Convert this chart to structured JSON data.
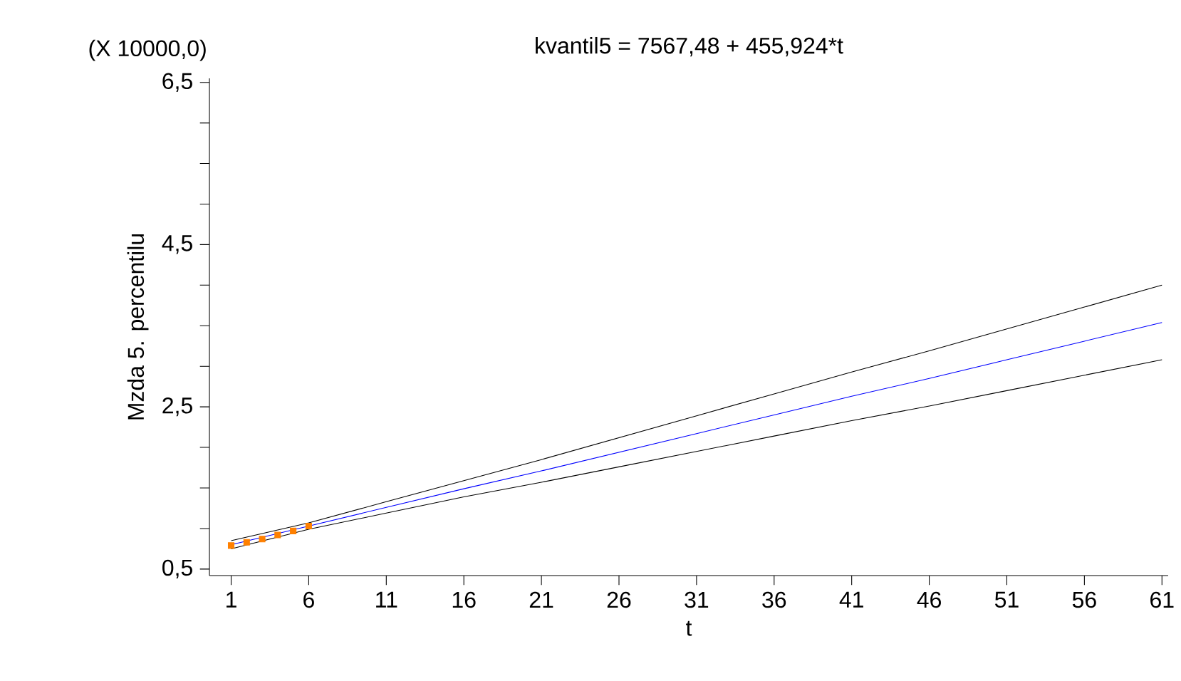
{
  "chart_data": {
    "type": "line",
    "title": "kvantil5 = 7567,48 + 455,924*t",
    "xlabel": "t",
    "ylabel": "Mzda 5. percentilu",
    "annotations": [
      "(X 10000,0)"
    ],
    "xlim": [
      -0.4,
      61.4
    ],
    "ylim": [
      0.42,
      6.55
    ],
    "xticks": [
      1,
      6,
      11,
      16,
      21,
      26,
      31,
      36,
      41,
      46,
      51,
      56,
      61
    ],
    "yticks": [
      {
        "value": 0.5,
        "label": "0,5"
      },
      {
        "value": 1.0,
        "label": null
      },
      {
        "value": 1.5,
        "label": null
      },
      {
        "value": 2.0,
        "label": null
      },
      {
        "value": 2.5,
        "label": "2,5"
      },
      {
        "value": 3.0,
        "label": null
      },
      {
        "value": 3.5,
        "label": null
      },
      {
        "value": 4.0,
        "label": null
      },
      {
        "value": 4.5,
        "label": "4,5"
      },
      {
        "value": 5.0,
        "label": null
      },
      {
        "value": 5.5,
        "label": null
      },
      {
        "value": 6.0,
        "label": null
      },
      {
        "value": 6.5,
        "label": "6,5"
      }
    ],
    "grid": false,
    "x": [
      1,
      6,
      11,
      16,
      21,
      26,
      31,
      36,
      41,
      46,
      51,
      56,
      61
    ],
    "series": [
      {
        "color": "#000000",
        "marker": "none",
        "values": [
          0.85,
          1.07,
          1.33,
          1.59,
          1.85,
          2.12,
          2.39,
          2.66,
          2.93,
          3.19,
          3.46,
          3.73,
          4.0
        ]
      },
      {
        "color": "#000000",
        "marker": "none",
        "values": [
          0.75,
          0.99,
          1.19,
          1.39,
          1.57,
          1.76,
          1.95,
          2.14,
          2.33,
          2.51,
          2.7,
          2.89,
          3.08
        ]
      },
      {
        "color": "#0000ff",
        "marker": "none",
        "values": [
          0.8,
          1.03,
          1.26,
          1.49,
          1.71,
          1.94,
          2.17,
          2.4,
          2.63,
          2.85,
          3.08,
          3.31,
          3.54
        ]
      },
      {
        "type": "scatter",
        "color": "#ff8000",
        "marker": "square",
        "x": [
          1,
          2,
          3,
          4,
          5,
          6
        ],
        "values": [
          0.79,
          0.83,
          0.87,
          0.92,
          0.97,
          1.03
        ]
      }
    ]
  }
}
